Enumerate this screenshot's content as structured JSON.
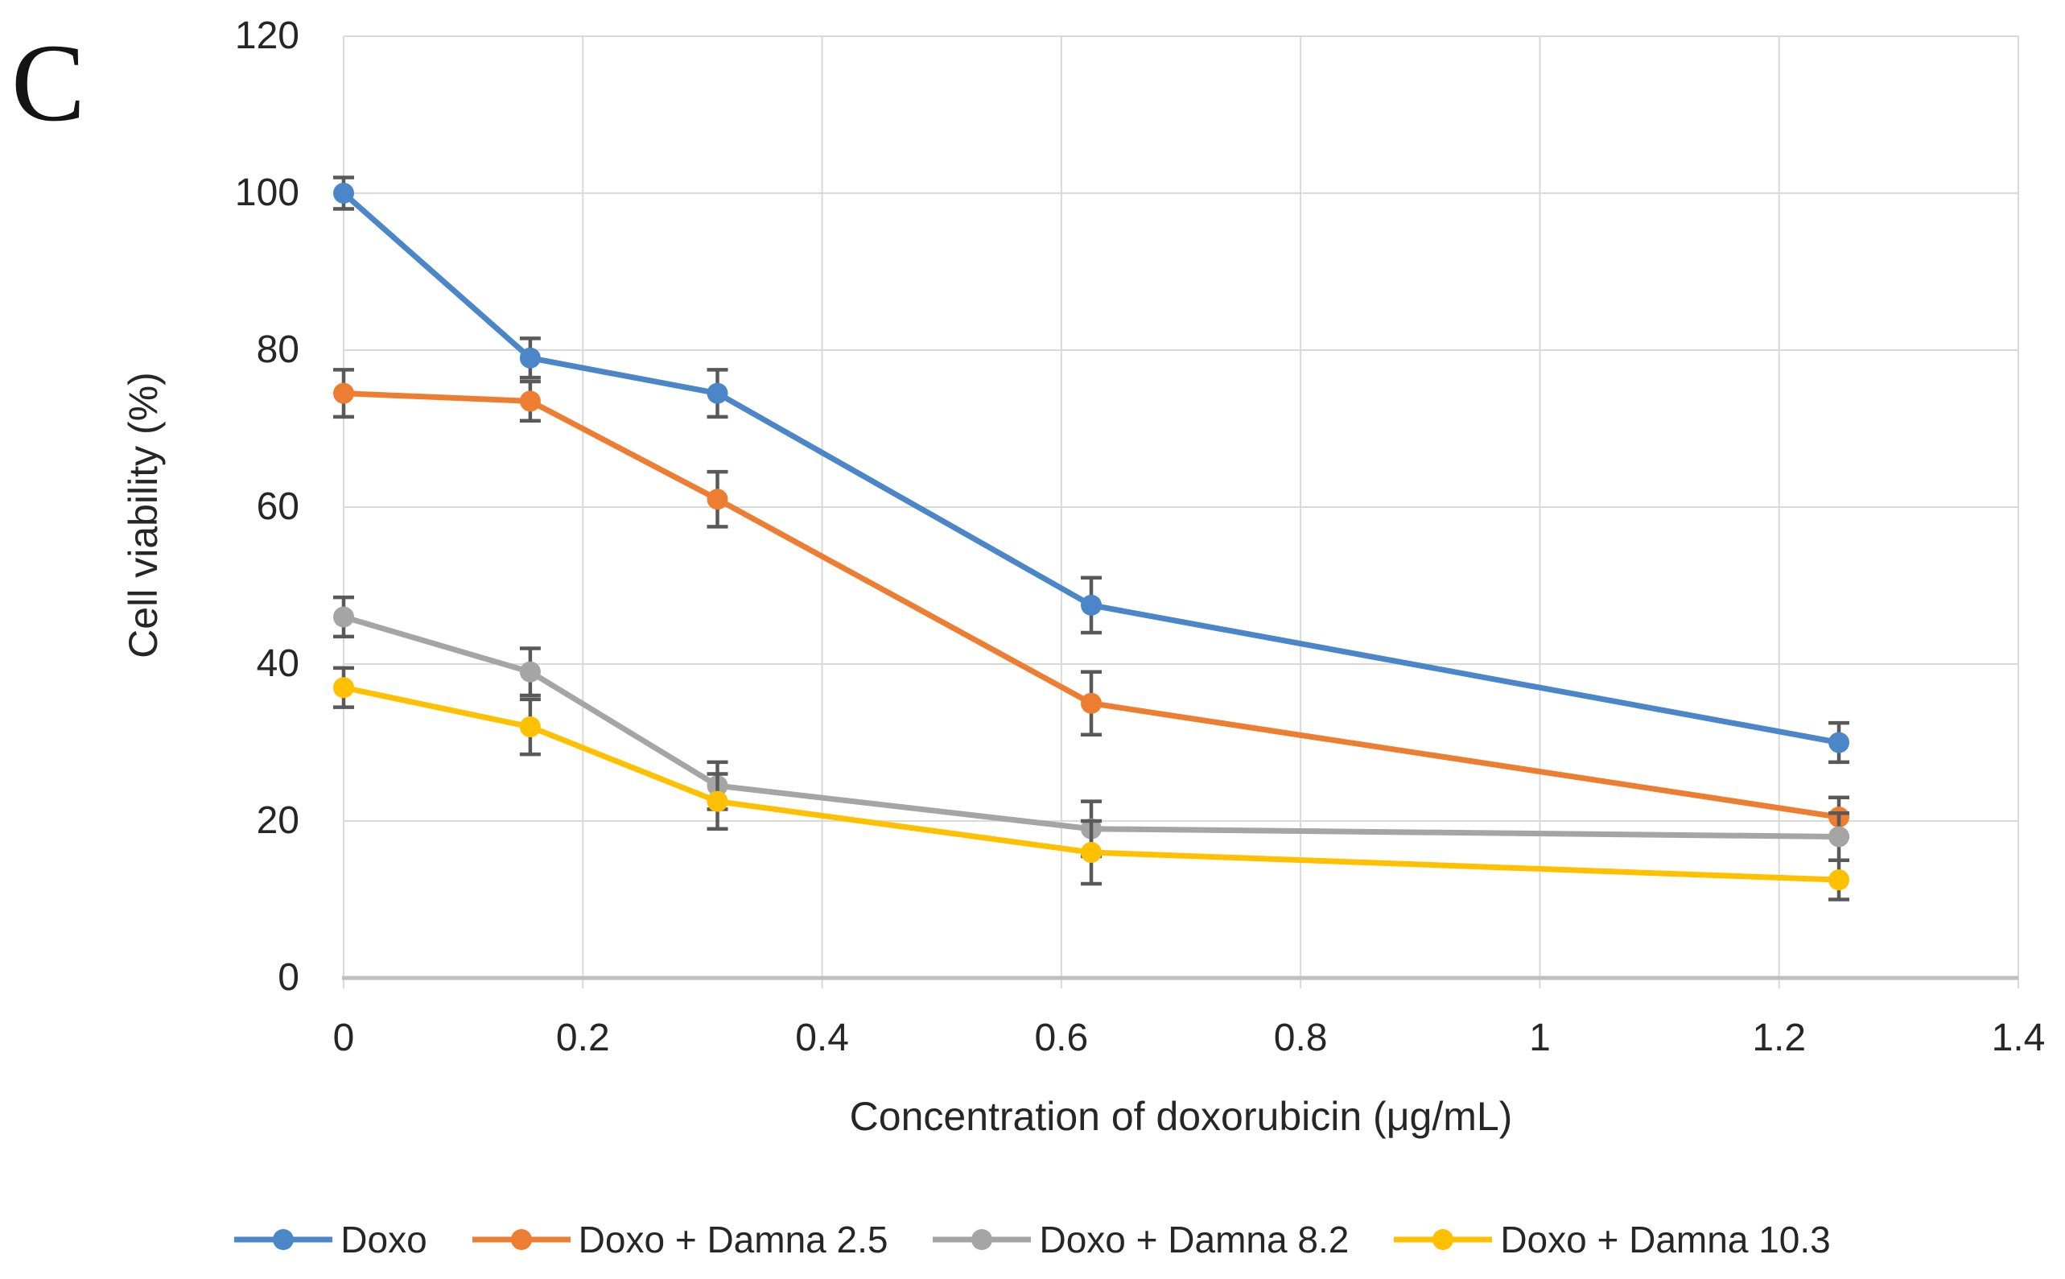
{
  "figure": {
    "panel_label": "C",
    "background": "#FFFFFF"
  },
  "chart_data": {
    "type": "line",
    "title": "",
    "xlabel": "Concentration of doxorubicin (μg/mL)",
    "ylabel": "Cell viability (%)",
    "xlim": [
      0,
      1.4
    ],
    "ylim": [
      0,
      120
    ],
    "xticks": [
      0,
      0.2,
      0.4,
      0.6,
      0.8,
      1,
      1.2,
      1.4
    ],
    "xtick_labels": [
      "0",
      "0.2",
      "0.4",
      "0.6",
      "0.8",
      "1",
      "1.2",
      "1.4"
    ],
    "yticks": [
      0,
      20,
      40,
      60,
      80,
      100,
      120
    ],
    "ytick_labels": [
      "0",
      "20",
      "40",
      "60",
      "80",
      "100",
      "120"
    ],
    "grid": true,
    "legend_position": "bottom",
    "x": [
      0,
      0.156,
      0.3125,
      0.625,
      1.25
    ],
    "series": [
      {
        "name": "Doxo",
        "color": "#4A86C8",
        "marker": "circle",
        "values": [
          100,
          79,
          74.5,
          47.5,
          30
        ],
        "errors": [
          2,
          2.5,
          3,
          3.5,
          2.5
        ]
      },
      {
        "name": "Doxo + Damna 2.5",
        "color": "#ED7D31",
        "marker": "circle",
        "values": [
          74.5,
          73.5,
          61,
          35,
          20.5
        ],
        "errors": [
          3,
          2.5,
          3.5,
          4,
          2.5
        ]
      },
      {
        "name": "Doxo + Damna 8.2",
        "color": "#A5A5A5",
        "marker": "circle",
        "values": [
          46,
          39,
          24.5,
          19,
          18
        ],
        "errors": [
          2.5,
          3,
          3,
          3.5,
          3
        ]
      },
      {
        "name": "Doxo + Damna 10.3",
        "color": "#FFC000",
        "marker": "circle",
        "values": [
          37,
          32,
          22.5,
          16,
          12.5
        ],
        "errors": [
          2.5,
          3.5,
          3.5,
          4,
          2.5
        ]
      }
    ],
    "error_bar_color": "#595959",
    "gridline_color": "#D9D9D9",
    "axis_line_color": "#BFBFBF",
    "tick_label_color": "#262626"
  }
}
